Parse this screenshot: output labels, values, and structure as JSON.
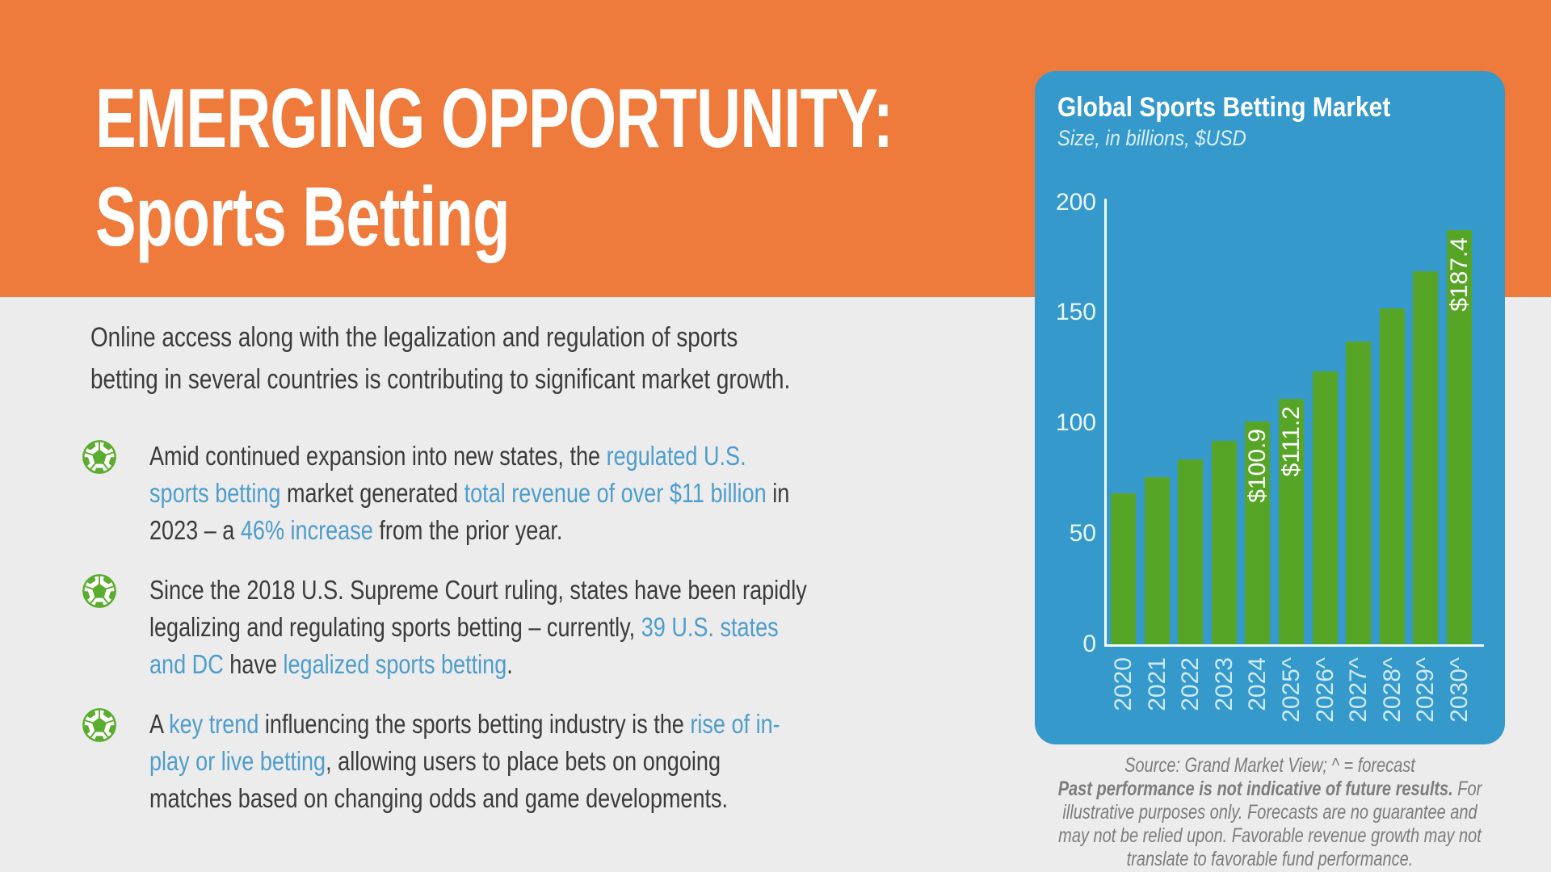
{
  "header": {
    "title_line1": "EMERGING OPPORTUNITY:",
    "title_line2": "Sports Betting"
  },
  "intro": {
    "segments": [
      {
        "t": "Online access along with the legalization and regulation of sports"
      },
      {
        "br": true
      },
      {
        "t": "betting in several countries is contributing to significant market growth."
      }
    ]
  },
  "bullets": [
    {
      "icon": "soccer-ball-icon",
      "segments": [
        {
          "t": "Amid continued expansion into new states, the "
        },
        {
          "t": "regulated U.S.",
          "accent": true
        },
        {
          "br": true
        },
        {
          "t": "sports betting",
          "accent": true
        },
        {
          "t": " market generated "
        },
        {
          "t": "total revenue of over $11 billion",
          "accent": true
        },
        {
          "t": " in"
        },
        {
          "br": true
        },
        {
          "t": "2023 – a "
        },
        {
          "t": "46% increase",
          "accent": true
        },
        {
          "t": " from the prior year."
        }
      ]
    },
    {
      "icon": "soccer-ball-icon",
      "segments": [
        {
          "t": "Since the 2018 U.S. Supreme Court ruling, states have been rapidly"
        },
        {
          "br": true
        },
        {
          "t": "legalizing and regulating sports betting – currently, "
        },
        {
          "t": "39 U.S. states",
          "accent": true
        },
        {
          "br": true
        },
        {
          "t": "and DC",
          "accent": true
        },
        {
          "t": " have "
        },
        {
          "t": "legalized sports betting",
          "accent": true
        },
        {
          "t": "."
        }
      ]
    },
    {
      "icon": "soccer-ball-icon",
      "segments": [
        {
          "t": "A "
        },
        {
          "t": "key trend",
          "accent": true
        },
        {
          "t": " influencing the sports betting industry is the "
        },
        {
          "t": "rise of in-",
          "accent": true
        },
        {
          "br": true
        },
        {
          "t": "play or live betting",
          "accent": true
        },
        {
          "t": ", allowing users to place bets on ongoing"
        },
        {
          "br": true
        },
        {
          "t": "matches based on changing odds and game developments."
        }
      ]
    }
  ],
  "chart": {
    "title": "Global Sports Betting Market",
    "subtitle": "Size, in billions, $USD"
  },
  "chart_data": {
    "type": "bar",
    "title": "Global Sports Betting Market",
    "subtitle": "Size, in billions, $USD",
    "categories": [
      "2020",
      "2021",
      "2022",
      "2023",
      "2024",
      "2025^",
      "2026^",
      "2027^",
      "2028^",
      "2029^",
      "2030^"
    ],
    "values": [
      68.5,
      75.5,
      83.7,
      92.0,
      100.9,
      111.2,
      123.4,
      137.0,
      152.1,
      168.8,
      187.4
    ],
    "value_labels": [
      "",
      "",
      "",
      "",
      "$100.9",
      "$111.2",
      "",
      "",
      "",
      "",
      "$187.4"
    ],
    "xlabel": "",
    "ylabel": "Size, in billions, $USD",
    "ylim": [
      0,
      200
    ],
    "yticks": [
      0,
      50,
      100,
      150,
      200
    ],
    "grid": false,
    "legend": "none",
    "bar_color": "#57a527",
    "note": "^ = forecast"
  },
  "footnote": {
    "segments": [
      {
        "t": "Source: Grand Market View; ^ = forecast"
      },
      {
        "br": true
      },
      {
        "t": "Past performance is not indicative of future results.",
        "bold": true
      },
      {
        "t": " For"
      },
      {
        "br": true
      },
      {
        "t": "illustrative purposes only. Forecasts are no guarantee and"
      },
      {
        "br": true
      },
      {
        "t": "may not be relied upon. Favorable revenue growth may not"
      },
      {
        "br": true
      },
      {
        "t": "translate to favorable fund performance."
      }
    ]
  },
  "icons": {
    "bullet": "soccer-ball-icon"
  },
  "colors": {
    "orange": "#ee7b3c",
    "page_bg": "#ececec",
    "card_blue": "#3599cc",
    "bar_green": "#57a527",
    "icon_green": "#5bad2f",
    "accent_blue": "#4e9dcb",
    "text_dark": "#3b3b3b",
    "footnote_gray": "#7c7c7c",
    "axis_white": "#f3fbfe",
    "tick_label": "#e9f6fc",
    "year_label": "#cfeaf7",
    "subtitle_blue": "#d9eff8"
  }
}
